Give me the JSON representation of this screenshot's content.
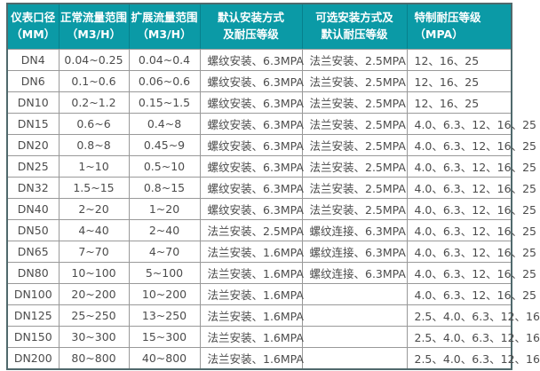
{
  "colors": {
    "header_bg": "#0b9aa6",
    "header_text": "#ffffff",
    "header_divider": "#07808c",
    "grid_line": "#999999",
    "outer_border": "#50696c",
    "body_text": "#4c4c4c",
    "row_bg": "#ffffff"
  },
  "table": {
    "columns": [
      {
        "id": "diameter",
        "label_lines": [
          "仪表口径",
          "（MM）"
        ],
        "width": 57,
        "header_align": "center",
        "cell_align": "center"
      },
      {
        "id": "normal-flow",
        "label_lines": [
          "正常流量范围",
          "（M3/H）"
        ],
        "width": 79,
        "header_align": "center",
        "cell_align": "center"
      },
      {
        "id": "extended-flow",
        "label_lines": [
          "扩展流量范围",
          "（M3/H）"
        ],
        "width": 80,
        "header_align": "center",
        "cell_align": "center"
      },
      {
        "id": "default-install",
        "label_lines": [
          "默认安装方式",
          "及耐压等级"
        ],
        "width": 115,
        "header_align": "center",
        "cell_align": "left"
      },
      {
        "id": "optional-install",
        "label_lines": [
          "可选安装方式及",
          "默认耐压等级"
        ],
        "width": 118,
        "header_align": "center",
        "cell_align": "left"
      },
      {
        "id": "special-pressure",
        "label_lines": [
          "特制耐压等级",
          "（MPA）"
        ],
        "width": 117,
        "header_align": "left",
        "cell_align": "left"
      }
    ],
    "rows": [
      [
        "DN4",
        "0.04~0.25",
        "0.04~0.4",
        "螺纹安装、6.3MPA",
        "法兰安装、2.5MPA",
        "12、16、25"
      ],
      [
        "DN6",
        "0.1~0.6",
        "0.06~0.6",
        "螺纹安装、6.3MPA",
        "法兰安装、2.5MPA",
        "12、16、25"
      ],
      [
        "DN10",
        "0.2~1.2",
        "0.15~1.5",
        "螺纹安装、6.3MPA",
        "法兰安装、2.5MPA",
        "12、16、25"
      ],
      [
        "DN15",
        "0.6~6",
        "0.4~8",
        "螺纹安装、6.3MPA",
        "法兰安装、2.5MPA",
        "4.0、6.3、12、16、25"
      ],
      [
        "DN20",
        "0.8~8",
        "0.45~9",
        "螺纹安装、6.3MPA",
        "法兰安装、2.5MPA",
        "4.0、6.3、12、16、25"
      ],
      [
        "DN25",
        "1~10",
        "0.5~10",
        "螺纹安装、6.3MPA",
        "法兰安装、2.5MPA",
        "4.0、6.3、12、16、25"
      ],
      [
        "DN32",
        "1.5~15",
        "0.8~15",
        "螺纹安装、6.3MPA",
        "法兰安装、2.5MPA",
        "4.0、6.3、12、16、25"
      ],
      [
        "DN40",
        "2~20",
        "1~20",
        "螺纹安装、6.3MPA",
        "法兰安装、2.5MPA",
        "4.0、6.3、12、16、25"
      ],
      [
        "DN50",
        "4~40",
        "2~40",
        "法兰安装、2.5MPA",
        "螺纹连接、6.3MPA",
        "4.0、6.3、12、16、25"
      ],
      [
        "DN65",
        "7~70",
        "4~70",
        "法兰安装、1.6MPA",
        "螺纹连接、6.3MPA",
        "4.0、6.3、12、16、25"
      ],
      [
        "DN80",
        "10~100",
        "5~100",
        "法兰安装、1.6MPA",
        "螺纹连接、6.3MPA",
        "4.0、6.3、12、16、25"
      ],
      [
        "DN100",
        "20~200",
        "10~200",
        "法兰安装、1.6MPA",
        "",
        "4.0、6.3、12、16、25"
      ],
      [
        "DN125",
        "25~250",
        "13~250",
        "法兰安装、1.6MPA",
        "",
        "2.5、4.0、6.3、12、16"
      ],
      [
        "DN150",
        "30~300",
        "15~300",
        "法兰安装、1.6MPA",
        "",
        "2.5、4.0、6.3、12、16"
      ],
      [
        "DN200",
        "80~800",
        "40~800",
        "法兰安装、1.6MPA",
        "",
        "2.5、4.0、6.3、12、16"
      ]
    ]
  }
}
